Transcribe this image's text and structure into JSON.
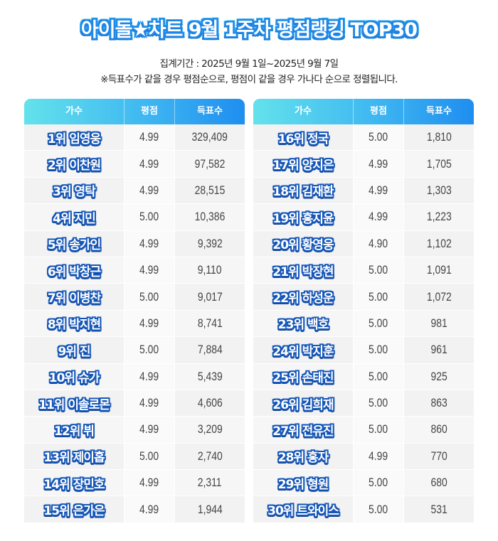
{
  "title": "아이돌★차트 9월 1주차 평점랭킹 TOP30",
  "subtitle_period": "집계기간 : 2025년 9월 1일~2025년 9월 7일",
  "subtitle_note": "※득표수가 같을 경우 평점순으로, 평점이 같을 경우 가나다 순으로 정렬됩니다.",
  "columns": {
    "singer": "가수",
    "rating": "평점",
    "votes": "득표수"
  },
  "left_rows": [
    {
      "name": "1위 임영웅",
      "rating": "4.99",
      "votes": "329,409"
    },
    {
      "name": "2위 이찬원",
      "rating": "4.99",
      "votes": "97,582"
    },
    {
      "name": "3위 영탁",
      "rating": "4.99",
      "votes": "28,515"
    },
    {
      "name": "4위 지민",
      "rating": "5.00",
      "votes": "10,386"
    },
    {
      "name": "5위 송가인",
      "rating": "4.99",
      "votes": "9,392"
    },
    {
      "name": "6위 박창근",
      "rating": "4.99",
      "votes": "9,110"
    },
    {
      "name": "7위 이병찬",
      "rating": "5.00",
      "votes": "9,017"
    },
    {
      "name": "8위 박지현",
      "rating": "4.99",
      "votes": "8,741"
    },
    {
      "name": "9위 진",
      "rating": "5.00",
      "votes": "7,884"
    },
    {
      "name": "10위 슈가",
      "rating": "4.99",
      "votes": "5,439"
    },
    {
      "name": "11위 이솔로몬",
      "rating": "4.99",
      "votes": "4,606"
    },
    {
      "name": "12위 뷔",
      "rating": "4.99",
      "votes": "3,209"
    },
    {
      "name": "13위 제이홉",
      "rating": "5.00",
      "votes": "2,740"
    },
    {
      "name": "14위 장민호",
      "rating": "4.99",
      "votes": "2,311"
    },
    {
      "name": "15위 은가은",
      "rating": "4.99",
      "votes": "1,944"
    }
  ],
  "right_rows": [
    {
      "name": "16위 정국",
      "rating": "5.00",
      "votes": "1,810"
    },
    {
      "name": "17위 양지은",
      "rating": "4.99",
      "votes": "1,705"
    },
    {
      "name": "18위 김재환",
      "rating": "4.99",
      "votes": "1,303"
    },
    {
      "name": "19위 홍지윤",
      "rating": "4.99",
      "votes": "1,223"
    },
    {
      "name": "20위 황영웅",
      "rating": "4.90",
      "votes": "1,102"
    },
    {
      "name": "21위 박장현",
      "rating": "5.00",
      "votes": "1,091"
    },
    {
      "name": "22위 하성운",
      "rating": "5.00",
      "votes": "1,072"
    },
    {
      "name": "23위 백호",
      "rating": "5.00",
      "votes": "981"
    },
    {
      "name": "24위 박지훈",
      "rating": "5.00",
      "votes": "961"
    },
    {
      "name": "25위 손태진",
      "rating": "5.00",
      "votes": "925"
    },
    {
      "name": "26위 김희재",
      "rating": "5.00",
      "votes": "863"
    },
    {
      "name": "27위 전유진",
      "rating": "5.00",
      "votes": "860"
    },
    {
      "name": "28위 홍자",
      "rating": "4.99",
      "votes": "770"
    },
    {
      "name": "29위 형원",
      "rating": "5.00",
      "votes": "680"
    },
    {
      "name": "30위 트와이스",
      "rating": "5.00",
      "votes": "531"
    }
  ]
}
